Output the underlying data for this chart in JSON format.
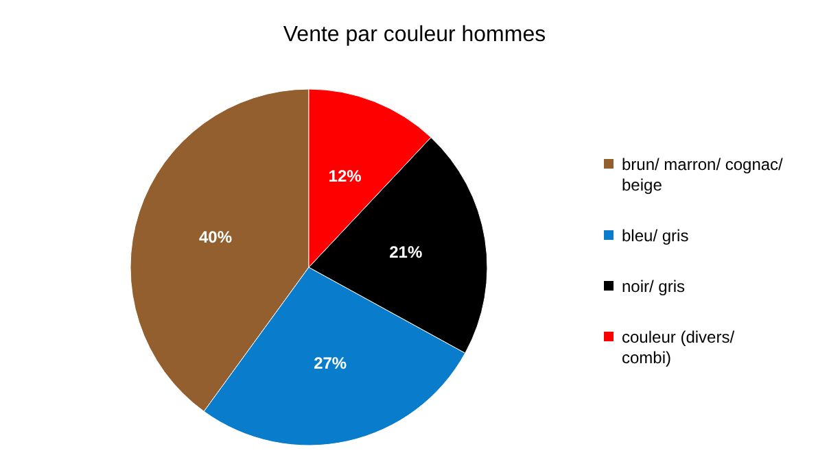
{
  "chart_data": {
    "type": "pie",
    "title": "Vente par couleur hommes",
    "categories": [
      "brun/ marron/ cognac/ beige",
      "bleu/ gris",
      "noir/ gris",
      "couleur (divers/ combi)"
    ],
    "values": [
      40,
      27,
      21,
      12
    ],
    "colors": [
      "#935f2e",
      "#0a7ccc",
      "#000000",
      "#ff0000"
    ],
    "value_labels": [
      "40%",
      "27%",
      "21%",
      "12%"
    ],
    "legend": "right"
  }
}
